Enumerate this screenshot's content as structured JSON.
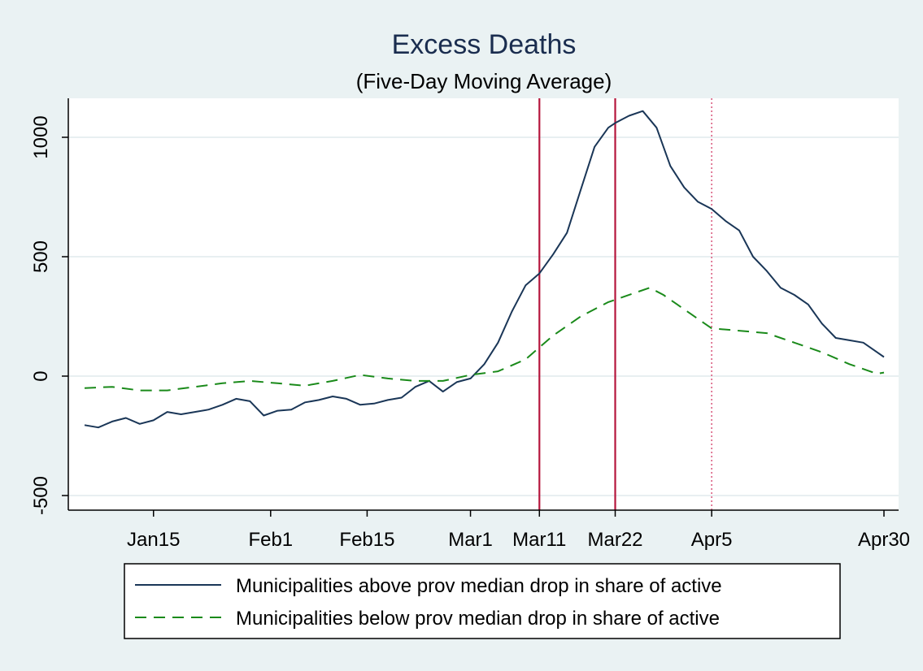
{
  "chart_data": {
    "type": "line",
    "title": "Excess Deaths",
    "subtitle": "(Five-Day Moving Average)",
    "xlabel": "",
    "ylabel": "",
    "x_unit": "day of year 2020",
    "xlim": [
      "2020-01-05",
      "2020-04-30"
    ],
    "ylim": [
      -550,
      1160
    ],
    "y_ticks": [
      {
        "value": -500,
        "label": "-500"
      },
      {
        "value": 0,
        "label": "0"
      },
      {
        "value": 500,
        "label": "500"
      },
      {
        "value": 1000,
        "label": "1000"
      }
    ],
    "x_ticks": [
      {
        "date": "2020-01-15",
        "label": "Jan15"
      },
      {
        "date": "2020-02-01",
        "label": "Feb1"
      },
      {
        "date": "2020-02-15",
        "label": "Feb15"
      },
      {
        "date": "2020-03-01",
        "label": "Mar1"
      },
      {
        "date": "2020-03-11",
        "label": "Mar11"
      },
      {
        "date": "2020-03-22",
        "label": "Mar22"
      },
      {
        "date": "2020-04-05",
        "label": "Apr5"
      },
      {
        "date": "2020-04-30",
        "label": "Apr30"
      }
    ],
    "grid": true,
    "legend_position": "bottom",
    "reference_lines": [
      {
        "date": "2020-03-11",
        "style": "solid",
        "color": "#b5163c"
      },
      {
        "date": "2020-03-22",
        "style": "solid",
        "color": "#b5163c"
      },
      {
        "date": "2020-04-05",
        "style": "dotted",
        "color": "#d9547a"
      }
    ],
    "series": [
      {
        "name": "Municipalities above prov median drop in share of active",
        "style": "solid",
        "color": "#1a3657",
        "x": [
          "2020-01-05",
          "2020-01-07",
          "2020-01-09",
          "2020-01-11",
          "2020-01-13",
          "2020-01-15",
          "2020-01-17",
          "2020-01-19",
          "2020-01-21",
          "2020-01-23",
          "2020-01-25",
          "2020-01-27",
          "2020-01-29",
          "2020-01-31",
          "2020-02-02",
          "2020-02-04",
          "2020-02-06",
          "2020-02-08",
          "2020-02-10",
          "2020-02-12",
          "2020-02-14",
          "2020-02-16",
          "2020-02-18",
          "2020-02-20",
          "2020-02-22",
          "2020-02-24",
          "2020-02-26",
          "2020-02-28",
          "2020-03-01",
          "2020-03-03",
          "2020-03-05",
          "2020-03-07",
          "2020-03-09",
          "2020-03-11",
          "2020-03-13",
          "2020-03-15",
          "2020-03-17",
          "2020-03-19",
          "2020-03-21",
          "2020-03-22",
          "2020-03-24",
          "2020-03-26",
          "2020-03-28",
          "2020-03-30",
          "2020-04-01",
          "2020-04-03",
          "2020-04-05",
          "2020-04-07",
          "2020-04-09",
          "2020-04-11",
          "2020-04-13",
          "2020-04-15",
          "2020-04-17",
          "2020-04-19",
          "2020-04-21",
          "2020-04-23",
          "2020-04-25",
          "2020-04-27",
          "2020-04-29",
          "2020-04-30"
        ],
        "values": [
          -205,
          -215,
          -190,
          -175,
          -200,
          -185,
          -150,
          -160,
          -150,
          -140,
          -120,
          -95,
          -105,
          -165,
          -145,
          -140,
          -110,
          -100,
          -85,
          -95,
          -120,
          -115,
          -100,
          -90,
          -45,
          -20,
          -65,
          -25,
          -10,
          50,
          140,
          270,
          380,
          430,
          510,
          600,
          780,
          960,
          1040,
          1060,
          1090,
          1110,
          1040,
          880,
          790,
          730,
          700,
          650,
          610,
          500,
          440,
          370,
          340,
          300,
          220,
          160,
          150,
          140,
          100,
          80
        ]
      },
      {
        "name": "Municipalities below prov median drop in share of active",
        "style": "dashed",
        "color": "#1a8a1a",
        "x": [
          "2020-01-05",
          "2020-01-09",
          "2020-01-13",
          "2020-01-17",
          "2020-01-21",
          "2020-01-25",
          "2020-01-29",
          "2020-02-02",
          "2020-02-06",
          "2020-02-10",
          "2020-02-14",
          "2020-02-18",
          "2020-02-22",
          "2020-02-26",
          "2020-03-01",
          "2020-03-05",
          "2020-03-09",
          "2020-03-13",
          "2020-03-17",
          "2020-03-21",
          "2020-03-25",
          "2020-03-27",
          "2020-03-29",
          "2020-03-31",
          "2020-04-02",
          "2020-04-05",
          "2020-04-09",
          "2020-04-13",
          "2020-04-17",
          "2020-04-21",
          "2020-04-25",
          "2020-04-29",
          "2020-04-30"
        ],
        "values": [
          -50,
          -45,
          -60,
          -60,
          -45,
          -30,
          -20,
          -30,
          -40,
          -20,
          5,
          -10,
          -20,
          -20,
          5,
          20,
          70,
          170,
          250,
          310,
          350,
          370,
          340,
          300,
          260,
          200,
          190,
          180,
          140,
          100,
          50,
          10,
          15
        ]
      }
    ]
  }
}
